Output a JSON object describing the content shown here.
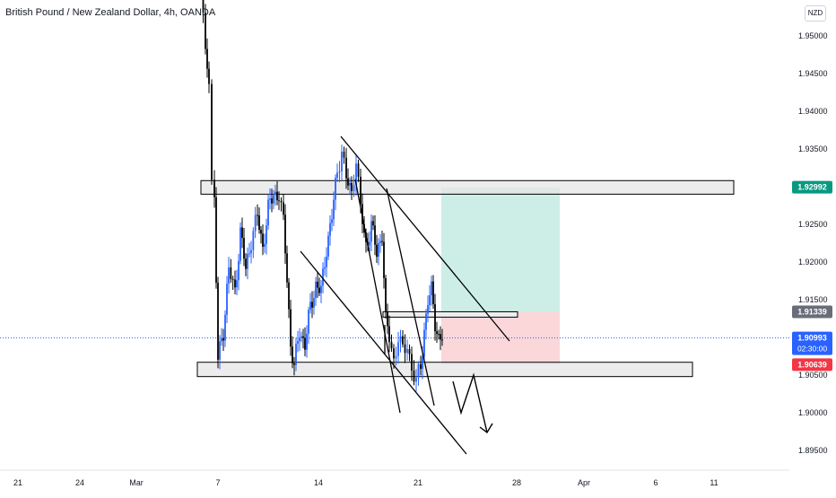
{
  "chart_data": {
    "type": "candlestick",
    "title": "British Pound / New Zealand Dollar, 4h, OANDA",
    "currency": "NZD",
    "y_axis": {
      "range": [
        1.893,
        1.955
      ],
      "ticks": [
        "1.95000",
        "1.94500",
        "1.94000",
        "1.93500",
        "1.92500",
        "1.92000",
        "1.91500",
        "1.90500",
        "1.90000",
        "1.89500"
      ],
      "tick_values": [
        1.95,
        1.945,
        1.94,
        1.935,
        1.925,
        1.92,
        1.915,
        1.905,
        1.9,
        1.895
      ]
    },
    "x_axis": {
      "ticks": [
        "21",
        "24",
        "Mar",
        "7",
        "14",
        "21",
        "28",
        "Apr",
        "6",
        "11"
      ]
    },
    "price_labels": [
      {
        "name": "resistance",
        "value": 1.92992,
        "text": "1.92992",
        "color": "#089981"
      },
      {
        "name": "entry",
        "value": 1.91339,
        "text": "1.91339",
        "color": "#6a6d78"
      },
      {
        "name": "last",
        "value": 1.90993,
        "text": "1.90993",
        "sub": "02:30:00",
        "color": "#2962ff"
      },
      {
        "name": "stop",
        "value": 1.90639,
        "text": "1.90639",
        "color": "#f23645"
      }
    ],
    "current_price": 1.90993,
    "annotations": {
      "resistance_zone": [
        1.929,
        1.9308
      ],
      "support_zone": [
        1.9048,
        1.9067
      ],
      "target_zone": [
        1.9134,
        1.9299
      ],
      "stop_zone": [
        1.9064,
        1.9134
      ]
    },
    "colors": {
      "bull": "#2962ff",
      "bear": "#000000",
      "zone_fill": "#e6e6e6",
      "target_fill": "#cdeee6",
      "stop_fill": "#fbd7da",
      "price_line": "#2962ff"
    }
  }
}
